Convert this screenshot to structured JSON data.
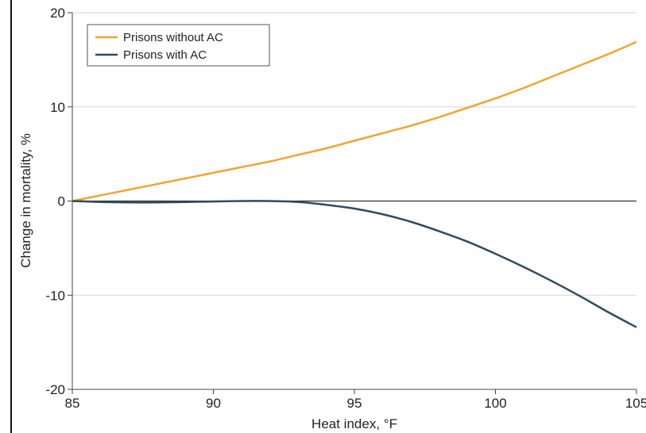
{
  "chart_data": {
    "type": "line",
    "xlabel": "Heat index, °F",
    "ylabel": "Change in mortality, %",
    "xlim": [
      85,
      105
    ],
    "ylim": [
      -20,
      20
    ],
    "x_ticks": [
      85,
      90,
      95,
      100,
      105
    ],
    "y_ticks": [
      20,
      10,
      0,
      -10,
      -20
    ],
    "x_tick_labels": [
      "85",
      "90",
      "95",
      "100",
      "105"
    ],
    "y_tick_labels": [
      "20",
      "10",
      "0",
      "-10",
      "-20"
    ],
    "grid": "horizontal",
    "reference_line_y": 0,
    "legend_position": "top-left",
    "series": [
      {
        "name": "Prisons without AC",
        "color": "#F0A531",
        "x": [
          85,
          86,
          87,
          88,
          89,
          90,
          91,
          92,
          93,
          94,
          95,
          96,
          97,
          98,
          99,
          100,
          101,
          102,
          103,
          104,
          105
        ],
        "y": [
          0,
          0.6,
          1.2,
          1.8,
          2.4,
          3.0,
          3.6,
          4.2,
          4.9,
          5.6,
          6.4,
          7.2,
          8.0,
          8.9,
          9.9,
          10.9,
          12.0,
          13.2,
          14.4,
          15.6,
          16.9
        ]
      },
      {
        "name": "Prisons with AC",
        "color": "#2E4D5C",
        "x": [
          85,
          86,
          87,
          88,
          89,
          90,
          91,
          92,
          93,
          94,
          95,
          96,
          97,
          98,
          99,
          100,
          101,
          102,
          103,
          104,
          105
        ],
        "y": [
          0,
          -0.1,
          -0.15,
          -0.15,
          -0.1,
          -0.05,
          0,
          0,
          -0.1,
          -0.4,
          -0.8,
          -1.4,
          -2.2,
          -3.2,
          -4.3,
          -5.6,
          -7.0,
          -8.5,
          -10.1,
          -11.8,
          -13.4
        ]
      }
    ]
  }
}
